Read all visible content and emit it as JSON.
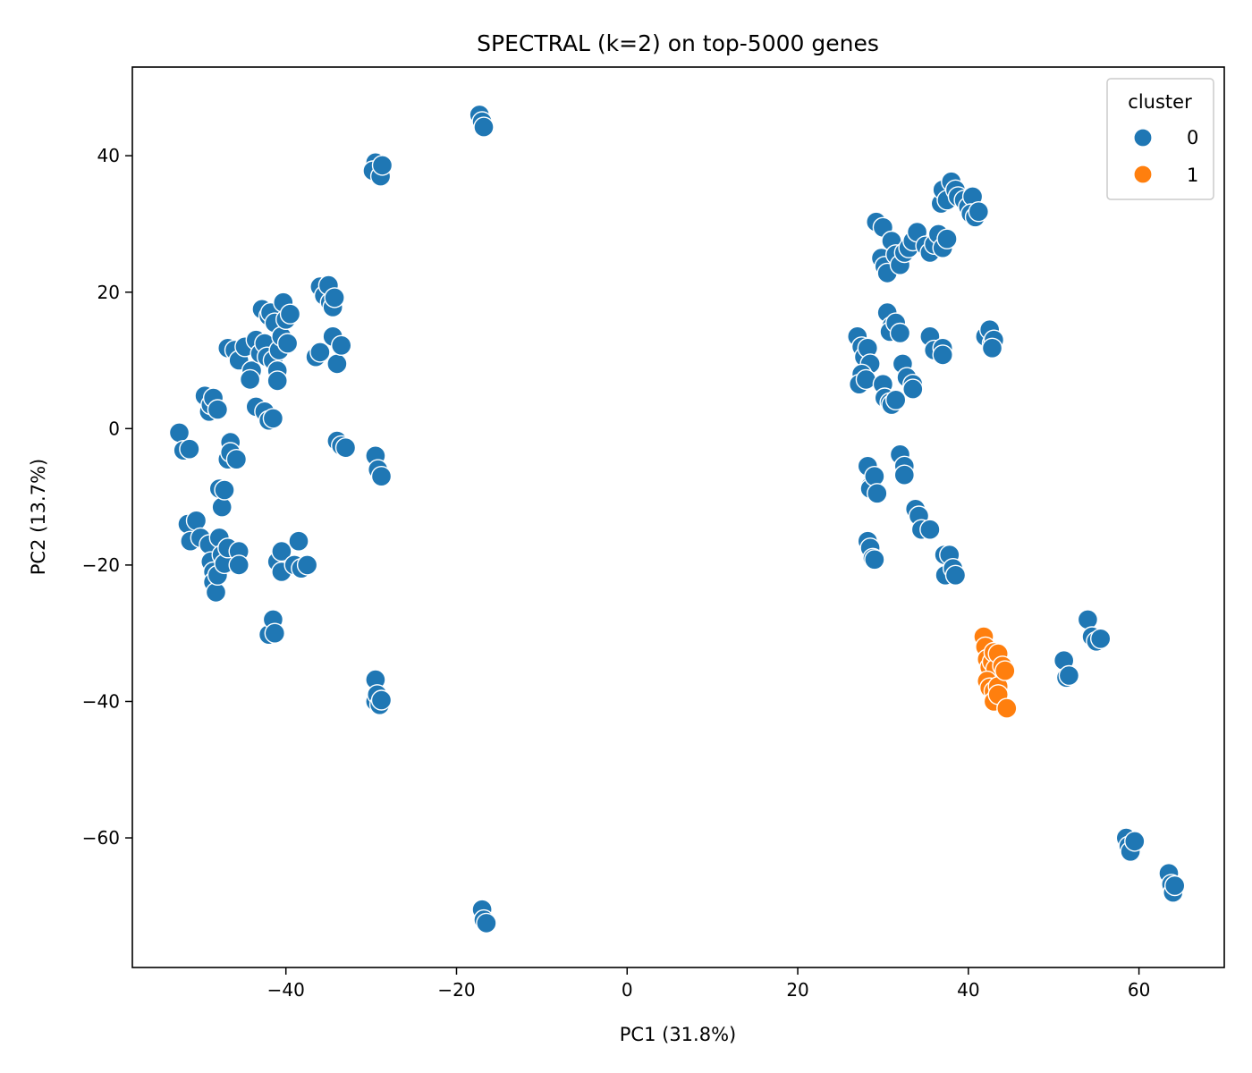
{
  "chart_data": {
    "type": "scatter",
    "title": "SPECTRAL (k=2) on top-5000 genes",
    "xlabel": "PC1 (31.8%)",
    "ylabel": "PC2 (13.7%)",
    "xlim": [
      -58,
      70
    ],
    "ylim": [
      -79,
      53
    ],
    "xticks": [
      -40,
      -20,
      0,
      20,
      40,
      60
    ],
    "yticks": [
      40,
      20,
      0,
      -20,
      -40,
      -60
    ],
    "xtick_labels": [
      "−40",
      "−20",
      "0",
      "20",
      "40",
      "60"
    ],
    "ytick_labels": [
      "40",
      "20",
      "0",
      "−20",
      "−40",
      "−60"
    ],
    "grid": false,
    "legend": {
      "title": "cluster",
      "placement": "top-right",
      "entries": [
        {
          "label": "0",
          "color": "#1f77b4"
        },
        {
          "label": "1",
          "color": "#ff7f0e"
        }
      ]
    },
    "series": [
      {
        "label": "0",
        "color": "#1f77b4",
        "points": [
          [
            -17.3,
            46.0
          ],
          [
            -17.0,
            45.0
          ],
          [
            -16.8,
            44.2
          ],
          [
            -29.5,
            39.0
          ],
          [
            -29.8,
            37.8
          ],
          [
            -28.9,
            37.0
          ],
          [
            -28.7,
            38.6
          ],
          [
            -52.5,
            -0.6
          ],
          [
            -52.0,
            -3.2
          ],
          [
            -51.3,
            -3.0
          ],
          [
            -49.5,
            4.8
          ],
          [
            -49.0,
            2.5
          ],
          [
            -48.8,
            3.5
          ],
          [
            -48.5,
            4.5
          ],
          [
            -48.0,
            2.8
          ],
          [
            -46.8,
            11.8
          ],
          [
            -46.0,
            11.5
          ],
          [
            -45.5,
            10.0
          ],
          [
            -44.8,
            12.0
          ],
          [
            -44.0,
            8.5
          ],
          [
            -44.2,
            7.2
          ],
          [
            -43.5,
            13.0
          ],
          [
            -43.0,
            11.0
          ],
          [
            -42.8,
            17.5
          ],
          [
            -42.5,
            12.5
          ],
          [
            -42.2,
            10.5
          ],
          [
            -42.0,
            16.5
          ],
          [
            -41.8,
            17.0
          ],
          [
            -41.5,
            10.0
          ],
          [
            -41.3,
            15.5
          ],
          [
            -41.0,
            8.5
          ],
          [
            -41.0,
            7.0
          ],
          [
            -40.8,
            11.5
          ],
          [
            -40.5,
            13.5
          ],
          [
            -40.3,
            18.5
          ],
          [
            -40.0,
            16.0
          ],
          [
            -39.8,
            12.5
          ],
          [
            -39.5,
            16.8
          ],
          [
            -43.5,
            3.2
          ],
          [
            -42.5,
            2.5
          ],
          [
            -42.0,
            1.2
          ],
          [
            -41.5,
            1.5
          ],
          [
            -46.5,
            -2.0
          ],
          [
            -46.8,
            -4.5
          ],
          [
            -46.5,
            -3.5
          ],
          [
            -45.8,
            -4.5
          ],
          [
            -47.8,
            -8.8
          ],
          [
            -47.5,
            -11.5
          ],
          [
            -47.2,
            -9.0
          ],
          [
            -51.5,
            -14.0
          ],
          [
            -51.2,
            -16.5
          ],
          [
            -50.5,
            -13.5
          ],
          [
            -50.0,
            -16.0
          ],
          [
            -49.0,
            -17.0
          ],
          [
            -48.8,
            -19.5
          ],
          [
            -48.5,
            -21.0
          ],
          [
            -48.5,
            -22.5
          ],
          [
            -48.2,
            -24.0
          ],
          [
            -48.0,
            -21.5
          ],
          [
            -47.8,
            -16.0
          ],
          [
            -47.5,
            -18.5
          ],
          [
            -47.2,
            -19.8
          ],
          [
            -46.8,
            -17.5
          ],
          [
            -45.5,
            -18.0
          ],
          [
            -45.5,
            -20.0
          ],
          [
            -41.0,
            -19.5
          ],
          [
            -40.5,
            -18.0
          ],
          [
            -40.5,
            -21.0
          ],
          [
            -39.0,
            -20.0
          ],
          [
            -38.5,
            -16.5
          ],
          [
            -38.2,
            -20.5
          ],
          [
            -37.5,
            -20.0
          ],
          [
            -42.0,
            -30.2
          ],
          [
            -41.5,
            -28.0
          ],
          [
            -41.3,
            -30.0
          ],
          [
            -36.0,
            20.8
          ],
          [
            -35.5,
            19.5
          ],
          [
            -35.0,
            21.0
          ],
          [
            -34.8,
            18.5
          ],
          [
            -34.5,
            17.8
          ],
          [
            -34.3,
            19.2
          ],
          [
            -36.5,
            10.5
          ],
          [
            -36.0,
            11.2
          ],
          [
            -34.5,
            13.5
          ],
          [
            -34.0,
            9.5
          ],
          [
            -33.5,
            12.2
          ],
          [
            -34.0,
            -1.8
          ],
          [
            -33.5,
            -2.5
          ],
          [
            -33.0,
            -2.8
          ],
          [
            -29.5,
            -4.0
          ],
          [
            -29.2,
            -6.0
          ],
          [
            -28.8,
            -7.0
          ],
          [
            -29.5,
            -36.8
          ],
          [
            -29.5,
            -40.0
          ],
          [
            -29.3,
            -39.0
          ],
          [
            -29.0,
            -40.5
          ],
          [
            -28.8,
            -39.8
          ],
          [
            -17.0,
            -70.5
          ],
          [
            -16.8,
            -72.0
          ],
          [
            -16.5,
            -72.5
          ],
          [
            29.2,
            30.3
          ],
          [
            30.0,
            29.5
          ],
          [
            29.8,
            25.0
          ],
          [
            30.2,
            23.8
          ],
          [
            30.5,
            22.8
          ],
          [
            31.0,
            27.5
          ],
          [
            31.5,
            25.5
          ],
          [
            32.0,
            24.0
          ],
          [
            32.5,
            25.8
          ],
          [
            33.0,
            26.5
          ],
          [
            33.5,
            27.5
          ],
          [
            34.0,
            28.8
          ],
          [
            35.0,
            26.8
          ],
          [
            35.5,
            25.8
          ],
          [
            36.0,
            27.0
          ],
          [
            36.5,
            28.5
          ],
          [
            37.0,
            26.5
          ],
          [
            37.5,
            27.8
          ],
          [
            36.8,
            33.0
          ],
          [
            37.0,
            35.0
          ],
          [
            37.5,
            33.5
          ],
          [
            38.0,
            36.2
          ],
          [
            38.5,
            35.0
          ],
          [
            38.8,
            34.0
          ],
          [
            39.5,
            33.5
          ],
          [
            40.0,
            32.5
          ],
          [
            40.5,
            34.0
          ],
          [
            40.3,
            31.5
          ],
          [
            40.8,
            31.0
          ],
          [
            41.2,
            31.8
          ],
          [
            27.0,
            13.5
          ],
          [
            27.5,
            12.0
          ],
          [
            27.8,
            10.5
          ],
          [
            28.2,
            11.8
          ],
          [
            28.5,
            9.5
          ],
          [
            27.5,
            8.0
          ],
          [
            27.2,
            6.5
          ],
          [
            28.0,
            7.2
          ],
          [
            30.0,
            6.5
          ],
          [
            30.2,
            4.5
          ],
          [
            30.8,
            3.8
          ],
          [
            31.0,
            3.5
          ],
          [
            31.5,
            4.2
          ],
          [
            30.5,
            17.0
          ],
          [
            31.0,
            15.0
          ],
          [
            30.8,
            14.2
          ],
          [
            31.5,
            15.5
          ],
          [
            32.0,
            14.0
          ],
          [
            32.3,
            9.5
          ],
          [
            32.8,
            7.5
          ],
          [
            33.5,
            6.5
          ],
          [
            33.5,
            5.8
          ],
          [
            35.5,
            13.5
          ],
          [
            36.0,
            11.5
          ],
          [
            37.0,
            11.8
          ],
          [
            37.0,
            10.8
          ],
          [
            42.0,
            13.5
          ],
          [
            42.5,
            14.5
          ],
          [
            42.8,
            12.5
          ],
          [
            43.0,
            13.0
          ],
          [
            42.8,
            11.8
          ],
          [
            32.0,
            -3.8
          ],
          [
            32.5,
            -5.5
          ],
          [
            32.5,
            -6.8
          ],
          [
            28.2,
            -5.5
          ],
          [
            28.5,
            -8.5
          ],
          [
            28.5,
            -8.8
          ],
          [
            29.0,
            -7.0
          ],
          [
            29.3,
            -9.5
          ],
          [
            33.8,
            -11.8
          ],
          [
            34.2,
            -12.8
          ],
          [
            34.5,
            -14.8
          ],
          [
            35.5,
            -14.8
          ],
          [
            28.2,
            -16.5
          ],
          [
            28.5,
            -17.5
          ],
          [
            28.8,
            -19.0
          ],
          [
            29.0,
            -19.2
          ],
          [
            37.2,
            -18.5
          ],
          [
            37.3,
            -21.5
          ],
          [
            37.8,
            -18.5
          ],
          [
            38.2,
            -20.5
          ],
          [
            38.5,
            -21.5
          ],
          [
            51.2,
            -34.0
          ],
          [
            51.5,
            -36.5
          ],
          [
            51.8,
            -36.2
          ],
          [
            54.0,
            -28.0
          ],
          [
            54.5,
            -30.5
          ],
          [
            55.0,
            -31.2
          ],
          [
            55.5,
            -30.8
          ],
          [
            58.5,
            -60.0
          ],
          [
            58.8,
            -61.2
          ],
          [
            59.0,
            -62.0
          ],
          [
            59.5,
            -60.5
          ],
          [
            63.5,
            -65.2
          ],
          [
            63.8,
            -66.8
          ],
          [
            64.0,
            -68.0
          ],
          [
            64.2,
            -67.0
          ]
        ]
      },
      {
        "label": "1",
        "color": "#ff7f0e",
        "points": [
          [
            41.8,
            -30.5
          ],
          [
            42.0,
            -32.0
          ],
          [
            42.2,
            -33.8
          ],
          [
            42.5,
            -35.0
          ],
          [
            42.8,
            -34.2
          ],
          [
            43.0,
            -32.8
          ],
          [
            43.2,
            -35.2
          ],
          [
            43.5,
            -33.0
          ],
          [
            42.2,
            -37.0
          ],
          [
            42.5,
            -38.0
          ],
          [
            43.0,
            -38.5
          ],
          [
            43.5,
            -37.8
          ],
          [
            43.0,
            -40.0
          ],
          [
            43.5,
            -39.0
          ],
          [
            44.0,
            -34.8
          ],
          [
            44.3,
            -35.5
          ],
          [
            44.5,
            -41.0
          ]
        ]
      }
    ]
  }
}
